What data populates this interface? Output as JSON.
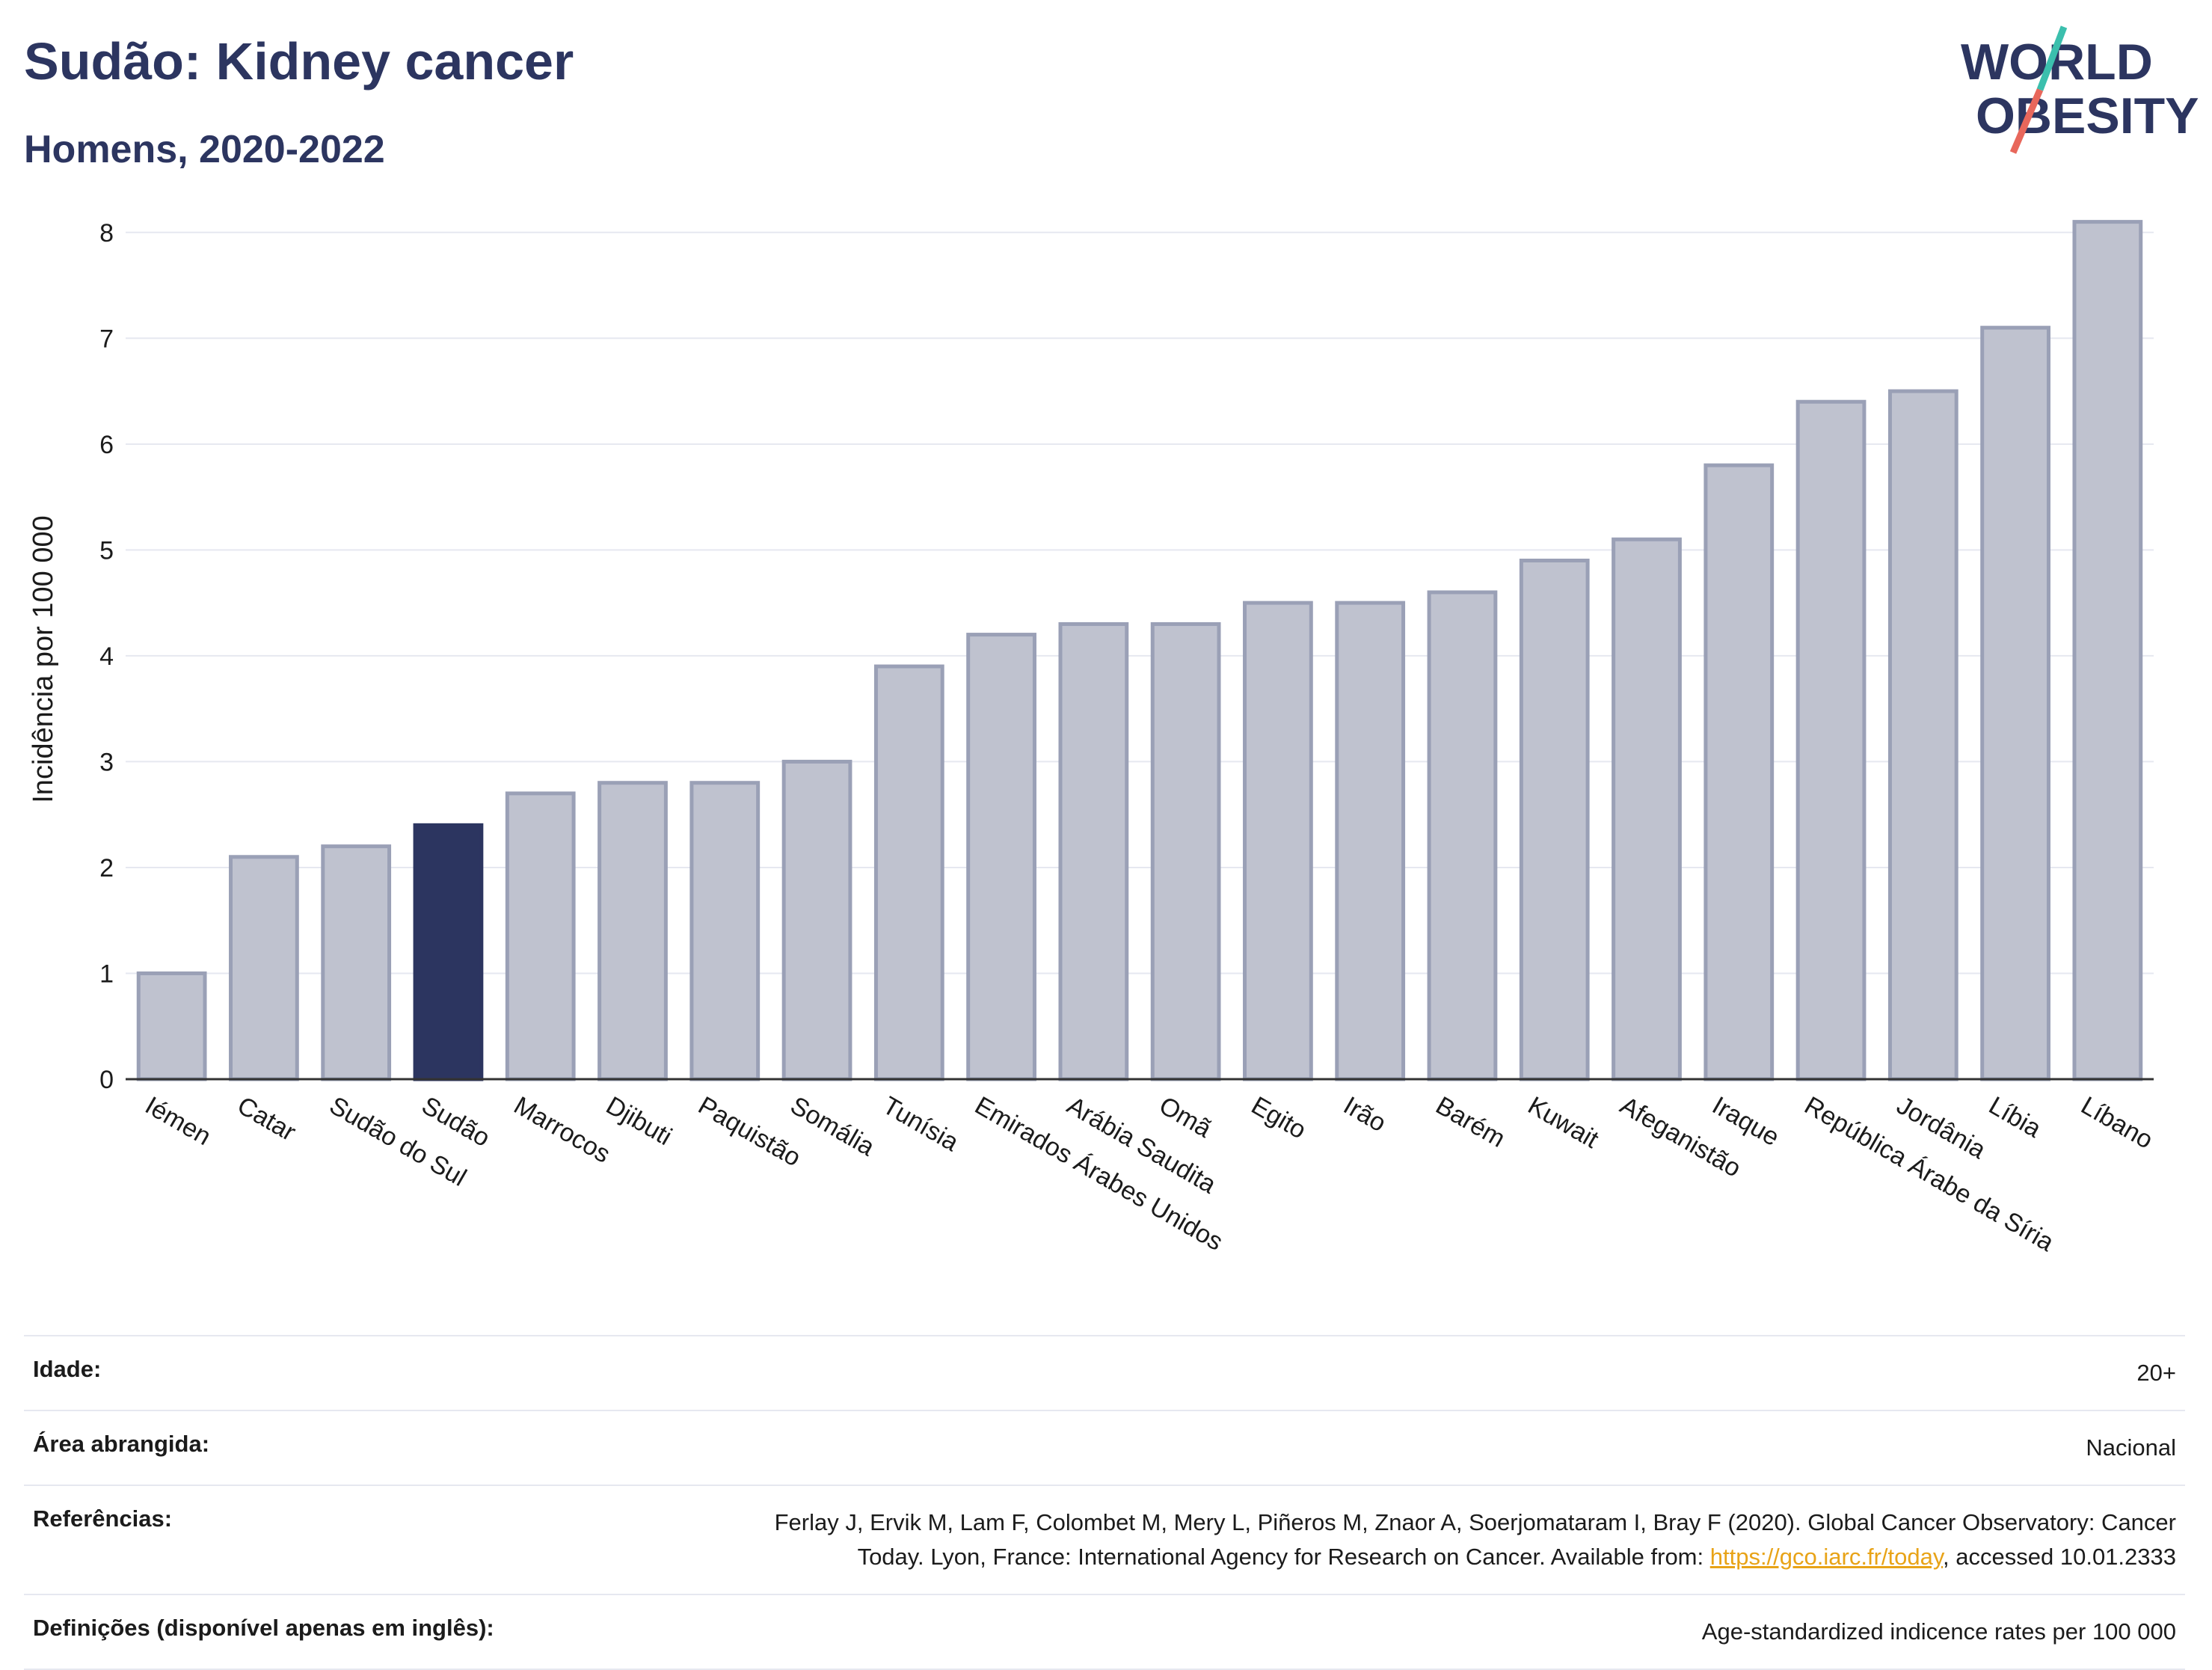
{
  "header": {
    "title": "Sudão: Kidney cancer",
    "subtitle": "Homens, 2020-2022"
  },
  "logo": {
    "line1": "WORLD",
    "line2": "OBESITY",
    "colors": {
      "text": "#2c3560",
      "slash_teal": "#3bbfad",
      "slash_red": "#e8675b"
    }
  },
  "colors": {
    "bar_default": "#bfc2cf",
    "bar_default_border": "#9aa0b6",
    "bar_highlight": "#2c3560",
    "grid": "#e6e8f0",
    "axis": "#333333"
  },
  "chart_data": {
    "type": "bar",
    "title": "Sudão: Kidney cancer",
    "subtitle": "Homens, 2020-2022",
    "xlabel": "",
    "ylabel": "Incidência por 100 000",
    "ylim": [
      0,
      8.5
    ],
    "yticks": [
      0,
      1,
      2,
      3,
      4,
      5,
      6,
      7,
      8
    ],
    "grid": true,
    "highlight": "Sudão",
    "categories": [
      "Iémen",
      "Catar",
      "Sudão do Sul",
      "Sudão",
      "Marrocos",
      "Djibuti",
      "Paquistão",
      "Somália",
      "Tunísia",
      "Emirados Árabes Unidos",
      "Arábia Saudita",
      "Omã",
      "Egito",
      "Irão",
      "Barém",
      "Kuwait",
      "Afeganistão",
      "Iraque",
      "República Árabe da Síria",
      "Jordânia",
      "Líbia",
      "Líbano"
    ],
    "values": [
      1.0,
      2.1,
      2.2,
      2.4,
      2.7,
      2.8,
      2.8,
      3.0,
      3.9,
      4.2,
      4.3,
      4.3,
      4.5,
      4.5,
      4.6,
      4.9,
      5.1,
      5.8,
      6.4,
      6.5,
      7.1,
      8.1
    ]
  },
  "info": {
    "age_label": "Idade:",
    "age_value": "20+",
    "area_label": "Área abrangida:",
    "area_value": "Nacional",
    "references_label": "Referências:",
    "references_text_line1": "Ferlay J, Ervik M, Lam F, Colombet M, Mery L, Piñeros M, Znaor A, Soerjomataram I, Bray F (2020). Global Cancer Observatory: Cancer",
    "references_text_line2": "Today. Lyon, France: International Agency for Research on Cancer. Available from: ",
    "references_link": "https://gco.iarc.fr/today",
    "references_accessed": ", accessed 10.01.2333",
    "definitions_label": "Definições (disponível apenas em inglês):",
    "definitions_value": "Age-standardized indicence rates per 100 000"
  }
}
